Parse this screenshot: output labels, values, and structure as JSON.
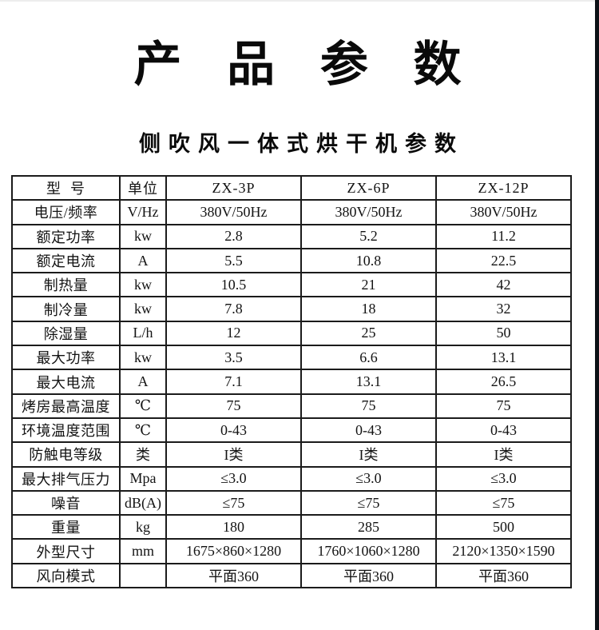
{
  "page": {
    "title": "产 品 参 数",
    "subtitle": "侧吹风一体式烘干机参数"
  },
  "table": {
    "columns": [
      "型  号",
      "单位",
      "ZX-3P",
      "ZX-6P",
      "ZX-12P"
    ],
    "rows": [
      {
        "label": "电压/频率",
        "unit": "V/Hz",
        "values": [
          "380V/50Hz",
          "380V/50Hz",
          "380V/50Hz"
        ]
      },
      {
        "label": "额定功率",
        "unit": "kw",
        "values": [
          "2.8",
          "5.2",
          "11.2"
        ]
      },
      {
        "label": "额定电流",
        "unit": "A",
        "values": [
          "5.5",
          "10.8",
          "22.5"
        ]
      },
      {
        "label": "制热量",
        "unit": "kw",
        "values": [
          "10.5",
          "21",
          "42"
        ]
      },
      {
        "label": "制冷量",
        "unit": "kw",
        "values": [
          "7.8",
          "18",
          "32"
        ]
      },
      {
        "label": "除湿量",
        "unit": "L/h",
        "values": [
          "12",
          "25",
          "50"
        ]
      },
      {
        "label": "最大功率",
        "unit": "kw",
        "values": [
          "3.5",
          "6.6",
          "13.1"
        ]
      },
      {
        "label": "最大电流",
        "unit": "A",
        "values": [
          "7.1",
          "13.1",
          "26.5"
        ]
      },
      {
        "label": "烤房最高温度",
        "unit": "℃",
        "values": [
          "75",
          "75",
          "75"
        ]
      },
      {
        "label": "环境温度范围",
        "unit": "℃",
        "values": [
          "0-43",
          "0-43",
          "0-43"
        ]
      },
      {
        "label": "防触电等级",
        "unit": "类",
        "values": [
          "I类",
          "I类",
          "I类"
        ]
      },
      {
        "label": "最大排气压力",
        "unit": "Mpa",
        "values": [
          "≤3.0",
          "≤3.0",
          "≤3.0"
        ]
      },
      {
        "label": "噪音",
        "unit": "dB(A)",
        "values": [
          "≤75",
          "≤75",
          "≤75"
        ]
      },
      {
        "label": "重量",
        "unit": "kg",
        "values": [
          "180",
          "285",
          "500"
        ]
      },
      {
        "label": "外型尺寸",
        "unit": "mm",
        "values": [
          "1675×860×1280",
          "1760×1060×1280",
          "2120×1350×1590"
        ]
      },
      {
        "label": "风向模式",
        "unit": "",
        "values": [
          "平面360",
          "平面360",
          "平面360"
        ]
      }
    ]
  },
  "colors": {
    "background": "#ffffff",
    "text": "#111111",
    "table_border": "#1b1b1b",
    "right_strip": "#0d1117",
    "top_line": "#ededed"
  }
}
